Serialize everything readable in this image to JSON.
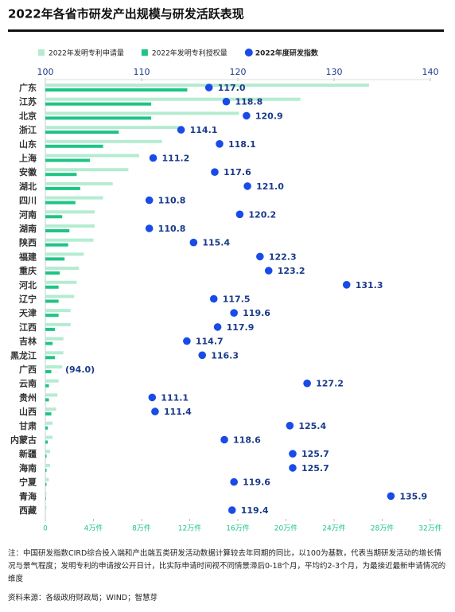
{
  "chart_data": {
    "type": "bar",
    "title": "2022年各省市研发产出规模与研发活跃表现",
    "categories": [
      "广东",
      "江苏",
      "北京",
      "浙江",
      "山东",
      "上海",
      "安徽",
      "湖北",
      "四川",
      "河南",
      "湖南",
      "陕西",
      "福建",
      "重庆",
      "河北",
      "辽宁",
      "天津",
      "江西",
      "吉林",
      "黑龙江",
      "广西",
      "云南",
      "贵州",
      "山西",
      "甘肃",
      "内蒙古",
      "新疆",
      "海南",
      "宁夏",
      "青海",
      "西藏"
    ],
    "series": [
      {
        "name": "2022年发明专利申请量",
        "color": "#b5ecd1",
        "axis": "x2",
        "mark": "bar-upper",
        "values": [
          26.9,
          21.2,
          16.1,
          11.1,
          9.7,
          7.8,
          6.9,
          5.6,
          4.8,
          4.1,
          4.1,
          4.0,
          3.2,
          2.8,
          2.6,
          2.4,
          2.1,
          2.1,
          1.5,
          1.5,
          1.4,
          1.1,
          1.0,
          0.9,
          0.6,
          0.6,
          0.4,
          0.4,
          0.3,
          0.1,
          0.1
        ]
      },
      {
        "name": "2022年发明专利授权量",
        "color": "#1fc484",
        "axis": "x2",
        "mark": "bar-lower",
        "values": [
          11.8,
          8.8,
          8.8,
          6.1,
          4.8,
          3.7,
          2.6,
          2.9,
          2.5,
          1.4,
          2.0,
          1.9,
          1.6,
          1.2,
          1.1,
          1.1,
          1.1,
          0.8,
          0.6,
          0.8,
          0.5,
          0.3,
          0.3,
          0.5,
          0.2,
          0.2,
          0.1,
          0.1,
          0.1,
          0.05,
          0.0
        ]
      },
      {
        "name": "2022年度研发指数",
        "color": "#1a4be8",
        "axis": "x",
        "mark": "dot",
        "values": [
          117.0,
          118.8,
          120.9,
          114.1,
          118.1,
          111.2,
          117.6,
          121.0,
          110.8,
          120.2,
          110.8,
          115.4,
          122.3,
          123.2,
          131.3,
          117.5,
          119.6,
          117.9,
          114.7,
          116.3,
          94.0,
          127.2,
          111.1,
          111.4,
          125.4,
          118.6,
          125.7,
          125.7,
          119.6,
          135.9,
          119.4
        ],
        "value_labels": [
          "117.0",
          "118.8",
          "120.9",
          "114.1",
          "118.1",
          "111.2",
          "117.6",
          "121.0",
          "110.8",
          "120.2",
          "110.8",
          "115.4",
          "122.3",
          "123.2",
          "131.3",
          "117.5",
          "119.6",
          "117.9",
          "114.7",
          "116.3",
          "(94.0)",
          "127.2",
          "111.1",
          "111.4",
          "125.4",
          "118.6",
          "125.7",
          "125.7",
          "119.6",
          "135.9",
          "119.4"
        ]
      }
    ],
    "xlim": [
      100,
      140
    ],
    "xticks": [
      100,
      110,
      120,
      130,
      140
    ],
    "x2lim": [
      0,
      32
    ],
    "x2ticks": [
      0,
      {
        "value": 4,
        "label": "4万件"
      },
      {
        "value": 8,
        "label": "8万件"
      },
      {
        "value": 12,
        "label": "12万件"
      },
      {
        "value": 16,
        "label": "16万件"
      },
      {
        "value": 20,
        "label": "20万件"
      },
      {
        "value": 24,
        "label": "24万件"
      },
      {
        "value": 28,
        "label": "28万件"
      },
      {
        "value": 32,
        "label": "32万件"
      }
    ],
    "legend": "top"
  },
  "notes": "注：中国研发指数CIRD综合投入端和产出端五类研发活动数据计算较去年同期的同比，以100为基数，代表当期研发活动的增长情况与景气程度；发明专利的申请按公开日计，比实际申请时间视不同情景滞后0-18个月，平均约2-3个月，为最接近最新申请情况的维度",
  "source": "资料来源：各级政府财政局；WIND；智慧芽"
}
